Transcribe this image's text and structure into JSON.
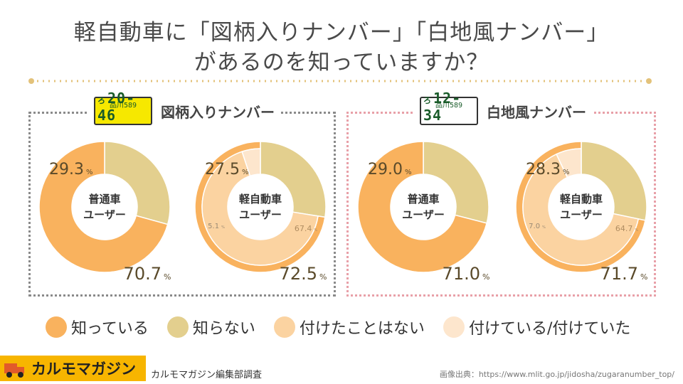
{
  "title_line1": "軽自動車に「図柄入りナンバー」「白地風ナンバー」",
  "title_line2": "があるのを知っていますか？",
  "panels": {
    "left": {
      "label": "図柄入りナンバー",
      "plate_top": "品川589",
      "plate_kana": "ろ",
      "plate_number": "20-46"
    },
    "right": {
      "label": "白地風ナンバー",
      "plate_top": "品川589",
      "plate_kana": "ろ",
      "plate_number": "12-34"
    }
  },
  "legend": [
    {
      "label": "知っている",
      "color": "#f9b25e"
    },
    {
      "label": "知らない",
      "color": "#e3cf8e"
    },
    {
      "label": "付けたことはない",
      "color": "#fbd3a1"
    },
    {
      "label": "付けている/付けていた",
      "color": "#fde6cd"
    }
  ],
  "brand": "カルモマガジン",
  "survey_note": "カルモマガジン編集部調査",
  "source": "画像出典：https://www.mlit.go.jp/jidosha/zugaranumber_top/",
  "chart_data": [
    {
      "type": "pie",
      "panel": "図柄入りナンバー",
      "center_label": [
        "普通車",
        "ユーザー"
      ],
      "categories": [
        "知っている",
        "知らない"
      ],
      "values": [
        70.7,
        29.3
      ],
      "unit": "%"
    },
    {
      "type": "pie",
      "panel": "図柄入りナンバー",
      "center_label": [
        "軽自動車",
        "ユーザー"
      ],
      "categories": [
        "知っている",
        "知らない"
      ],
      "values": [
        72.5,
        27.5
      ],
      "unit": "%",
      "inner": {
        "categories": [
          "付けたことはない",
          "付けている/付けていた"
        ],
        "values": [
          67.4,
          5.1
        ]
      }
    },
    {
      "type": "pie",
      "panel": "白地風ナンバー",
      "center_label": [
        "普通車",
        "ユーザー"
      ],
      "categories": [
        "知っている",
        "知らない"
      ],
      "values": [
        71.0,
        29.0
      ],
      "unit": "%"
    },
    {
      "type": "pie",
      "panel": "白地風ナンバー",
      "center_label": [
        "軽自動車",
        "ユーザー"
      ],
      "categories": [
        "知っている",
        "知らない"
      ],
      "values": [
        71.7,
        28.3
      ],
      "unit": "%",
      "inner": {
        "categories": [
          "付けたことはない",
          "付けている/付けていた"
        ],
        "values": [
          64.7,
          7.0
        ]
      }
    }
  ]
}
